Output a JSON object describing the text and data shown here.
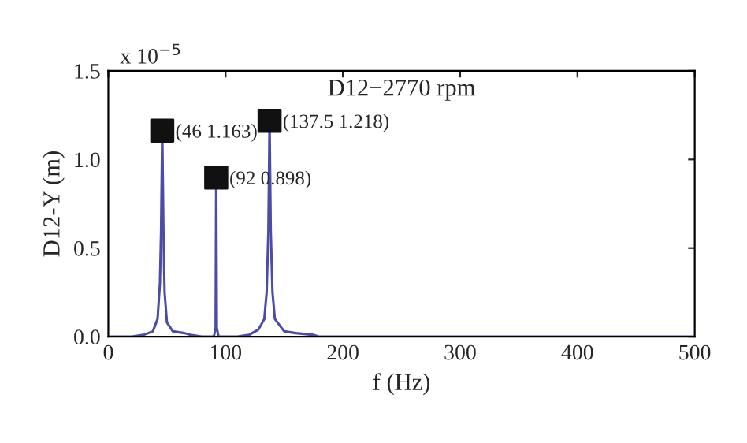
{
  "chart_data": {
    "type": "line",
    "title": "D12−2770 rpm",
    "xlabel": "f (Hz)",
    "ylabel": "D12-Y (m)",
    "annotations": [
      "x 10$^{−5}$",
      {
        "text": "(46 1.163)",
        "x": 46,
        "y": 1.163
      },
      {
        "text": "(92 0.898)",
        "x": 92,
        "y": 0.898
      },
      {
        "text": "(137.5 1.218)",
        "x": 137.5,
        "y": 1.218
      }
    ],
    "xlim": [
      0,
      500
    ],
    "xticks": [
      0,
      100,
      200,
      300,
      400,
      500
    ],
    "ylim": [
      0,
      1.5
    ],
    "yticks": [
      {
        "value": 0,
        "label": "0.0"
      },
      0.5,
      {
        "value": 1,
        "label": "1.0"
      },
      1.5
    ],
    "grid": false,
    "legend": false,
    "series": [
      {
        "color": "#4b4ba8",
        "marker": "none",
        "line_style": "solid",
        "x": [
          0,
          20,
          30,
          38,
          42,
          44,
          45,
          46,
          47,
          48,
          50,
          55,
          65,
          70,
          80,
          90,
          91.5,
          92,
          92.5,
          94,
          110,
          120,
          128,
          133,
          135,
          136.5,
          137.5,
          138.5,
          140,
          142,
          150,
          160,
          175,
          180,
          200,
          300,
          500
        ],
        "values": [
          0,
          0,
          0.01,
          0.03,
          0.1,
          0.3,
          0.6,
          1.163,
          0.6,
          0.25,
          0.08,
          0.03,
          0.02,
          0.01,
          0,
          0,
          0.05,
          0.898,
          0.05,
          0,
          0,
          0.01,
          0.04,
          0.1,
          0.25,
          0.6,
          1.218,
          0.6,
          0.25,
          0.1,
          0.03,
          0.02,
          0.01,
          0,
          0,
          0,
          0
        ]
      },
      {
        "type": "scatter",
        "color": "#111111",
        "marker": "square",
        "x": [
          46,
          92,
          137.5
        ],
        "values": [
          1.163,
          0.898,
          1.218
        ]
      }
    ]
  }
}
